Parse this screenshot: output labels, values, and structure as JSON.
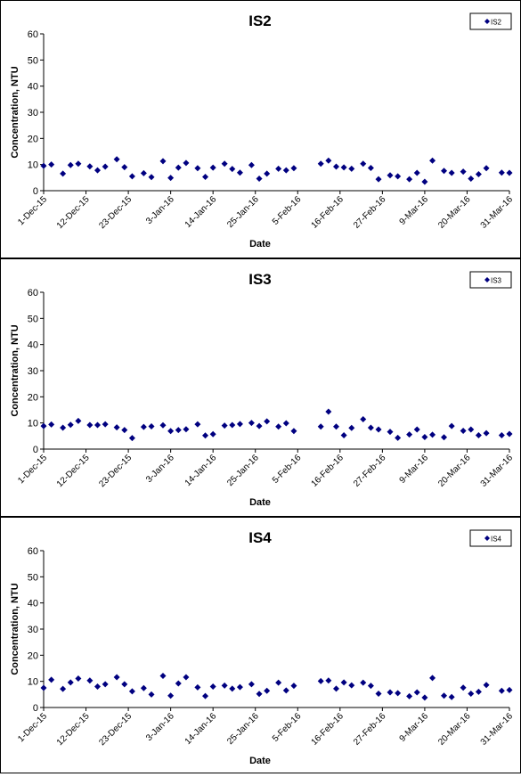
{
  "chart_data": [
    {
      "type": "scatter",
      "title": "IS2",
      "xlabel": "Date",
      "ylabel": "Concentration, NTU",
      "ylim": [
        0,
        60
      ],
      "yticks": [
        0,
        10,
        20,
        30,
        40,
        50,
        60
      ],
      "xticks": [
        "1-Dec-15",
        "12-Dec-15",
        "23-Dec-15",
        "3-Jan-16",
        "14-Jan-16",
        "25-Jan-16",
        "5-Feb-16",
        "16-Feb-16",
        "27-Feb-16",
        "9-Mar-16",
        "20-Mar-16",
        "31-Mar-16"
      ],
      "xlim": [
        "2015-12-01",
        "2016-03-31"
      ],
      "grid": false,
      "legend_position": "top-right",
      "marker_color": "#000080",
      "series": [
        {
          "name": "IS2",
          "points": [
            [
              "2015-12-01",
              9.5
            ],
            [
              "2015-12-03",
              10
            ],
            [
              "2015-12-06",
              6.5
            ],
            [
              "2015-12-08",
              9.8
            ],
            [
              "2015-12-10",
              10.3
            ],
            [
              "2015-12-13",
              9.3
            ],
            [
              "2015-12-15",
              7.8
            ],
            [
              "2015-12-17",
              9.2
            ],
            [
              "2015-12-20",
              12
            ],
            [
              "2015-12-22",
              9
            ],
            [
              "2015-12-24",
              5.5
            ],
            [
              "2015-12-27",
              6.7
            ],
            [
              "2015-12-29",
              5.2
            ],
            [
              "2016-01-01",
              11.3
            ],
            [
              "2016-01-03",
              4.9
            ],
            [
              "2016-01-05",
              8.8
            ],
            [
              "2016-01-07",
              10.6
            ],
            [
              "2016-01-10",
              8.6
            ],
            [
              "2016-01-12",
              5.3
            ],
            [
              "2016-01-14",
              8.8
            ],
            [
              "2016-01-17",
              10.3
            ],
            [
              "2016-01-19",
              8.3
            ],
            [
              "2016-01-21",
              6.9
            ],
            [
              "2016-01-24",
              9.8
            ],
            [
              "2016-01-26",
              4.6
            ],
            [
              "2016-01-28",
              6.5
            ],
            [
              "2016-01-31",
              8.4
            ],
            [
              "2016-02-02",
              7.8
            ],
            [
              "2016-02-04",
              8.6
            ],
            [
              "2016-02-11",
              10.3
            ],
            [
              "2016-02-13",
              11.5
            ],
            [
              "2016-02-15",
              9.2
            ],
            [
              "2016-02-17",
              8.9
            ],
            [
              "2016-02-19",
              8.4
            ],
            [
              "2016-02-22",
              10.3
            ],
            [
              "2016-02-24",
              8.7
            ],
            [
              "2016-02-26",
              4.4
            ],
            [
              "2016-02-29",
              5.9
            ],
            [
              "2016-03-02",
              5.5
            ],
            [
              "2016-03-05",
              4.4
            ],
            [
              "2016-03-07",
              6.8
            ],
            [
              "2016-03-09",
              3.4
            ],
            [
              "2016-03-11",
              11.5
            ],
            [
              "2016-03-14",
              7.6
            ],
            [
              "2016-03-16",
              6.8
            ],
            [
              "2016-03-19",
              7.3
            ],
            [
              "2016-03-21",
              4.6
            ],
            [
              "2016-03-23",
              6.3
            ],
            [
              "2016-03-25",
              8.6
            ],
            [
              "2016-03-29",
              6.9
            ],
            [
              "2016-03-31",
              6.8
            ]
          ]
        }
      ]
    },
    {
      "type": "scatter",
      "title": "IS3",
      "xlabel": "Date",
      "ylabel": "Concentration, NTU",
      "ylim": [
        0,
        60
      ],
      "yticks": [
        0,
        10,
        20,
        30,
        40,
        50,
        60
      ],
      "xticks": [
        "1-Dec-15",
        "12-Dec-15",
        "23-Dec-15",
        "3-Jan-16",
        "14-Jan-16",
        "25-Jan-16",
        "5-Feb-16",
        "16-Feb-16",
        "27-Feb-16",
        "9-Mar-16",
        "20-Mar-16",
        "31-Mar-16"
      ],
      "xlim": [
        "2015-12-01",
        "2016-03-31"
      ],
      "grid": false,
      "legend_position": "top-right",
      "marker_color": "#000080",
      "series": [
        {
          "name": "IS3",
          "points": [
            [
              "2015-12-01",
              8.8
            ],
            [
              "2015-12-03",
              9.4
            ],
            [
              "2015-12-06",
              8.2
            ],
            [
              "2015-12-08",
              9.3
            ],
            [
              "2015-12-10",
              10.8
            ],
            [
              "2015-12-13",
              9.2
            ],
            [
              "2015-12-15",
              9.2
            ],
            [
              "2015-12-17",
              9.5
            ],
            [
              "2015-12-20",
              8.3
            ],
            [
              "2015-12-22",
              7.3
            ],
            [
              "2015-12-24",
              4.2
            ],
            [
              "2015-12-27",
              8.5
            ],
            [
              "2015-12-29",
              8.7
            ],
            [
              "2016-01-01",
              9.1
            ],
            [
              "2016-01-03",
              6.9
            ],
            [
              "2016-01-05",
              7.3
            ],
            [
              "2016-01-07",
              7.6
            ],
            [
              "2016-01-10",
              9.5
            ],
            [
              "2016-01-12",
              5.2
            ],
            [
              "2016-01-14",
              5.7
            ],
            [
              "2016-01-17",
              9
            ],
            [
              "2016-01-19",
              9.2
            ],
            [
              "2016-01-21",
              9.6
            ],
            [
              "2016-01-24",
              10
            ],
            [
              "2016-01-26",
              8.8
            ],
            [
              "2016-01-28",
              10.6
            ],
            [
              "2016-01-31",
              8.6
            ],
            [
              "2016-02-02",
              9.9
            ],
            [
              "2016-02-04",
              6.9
            ],
            [
              "2016-02-11",
              8.6
            ],
            [
              "2016-02-13",
              14.3
            ],
            [
              "2016-02-15",
              8.6
            ],
            [
              "2016-02-17",
              5.3
            ],
            [
              "2016-02-19",
              8.1
            ],
            [
              "2016-02-22",
              11.4
            ],
            [
              "2016-02-24",
              8.2
            ],
            [
              "2016-02-26",
              7.5
            ],
            [
              "2016-02-29",
              6.6
            ],
            [
              "2016-03-02",
              4.3
            ],
            [
              "2016-03-05",
              5.6
            ],
            [
              "2016-03-07",
              7.5
            ],
            [
              "2016-03-09",
              4.6
            ],
            [
              "2016-03-11",
              5.5
            ],
            [
              "2016-03-14",
              4.5
            ],
            [
              "2016-03-16",
              8.8
            ],
            [
              "2016-03-19",
              7
            ],
            [
              "2016-03-21",
              7.5
            ],
            [
              "2016-03-23",
              5.3
            ],
            [
              "2016-03-25",
              6.1
            ],
            [
              "2016-03-29",
              5.3
            ],
            [
              "2016-03-31",
              5.8
            ]
          ]
        }
      ]
    },
    {
      "type": "scatter",
      "title": "IS4",
      "xlabel": "Date",
      "ylabel": "Concentration, NTU",
      "ylim": [
        0,
        60
      ],
      "yticks": [
        0,
        10,
        20,
        30,
        40,
        50,
        60
      ],
      "xticks": [
        "1-Dec-15",
        "12-Dec-15",
        "23-Dec-15",
        "3-Jan-16",
        "14-Jan-16",
        "25-Jan-16",
        "5-Feb-16",
        "16-Feb-16",
        "27-Feb-16",
        "9-Mar-16",
        "20-Mar-16",
        "31-Mar-16"
      ],
      "xlim": [
        "2015-12-01",
        "2016-03-31"
      ],
      "grid": false,
      "legend_position": "top-right",
      "marker_color": "#000080",
      "series": [
        {
          "name": "IS4",
          "points": [
            [
              "2015-12-01",
              7.5
            ],
            [
              "2015-12-03",
              10.6
            ],
            [
              "2015-12-06",
              7.1
            ],
            [
              "2015-12-08",
              9.6
            ],
            [
              "2015-12-10",
              11.1
            ],
            [
              "2015-12-13",
              10.3
            ],
            [
              "2015-12-15",
              8
            ],
            [
              "2015-12-17",
              8.9
            ],
            [
              "2015-12-20",
              11.6
            ],
            [
              "2015-12-22",
              8.9
            ],
            [
              "2015-12-24",
              6.2
            ],
            [
              "2015-12-27",
              7.4
            ],
            [
              "2015-12-29",
              5
            ],
            [
              "2016-01-01",
              12.1
            ],
            [
              "2016-01-03",
              4.5
            ],
            [
              "2016-01-05",
              9.2
            ],
            [
              "2016-01-07",
              11.6
            ],
            [
              "2016-01-10",
              7.7
            ],
            [
              "2016-01-12",
              4.4
            ],
            [
              "2016-01-14",
              8
            ],
            [
              "2016-01-17",
              8.4
            ],
            [
              "2016-01-19",
              7.2
            ],
            [
              "2016-01-21",
              7.8
            ],
            [
              "2016-01-24",
              8.9
            ],
            [
              "2016-01-26",
              5.2
            ],
            [
              "2016-01-28",
              6.4
            ],
            [
              "2016-01-31",
              9.5
            ],
            [
              "2016-02-02",
              6.5
            ],
            [
              "2016-02-04",
              8.3
            ],
            [
              "2016-02-11",
              10.1
            ],
            [
              "2016-02-13",
              10.3
            ],
            [
              "2016-02-15",
              7.2
            ],
            [
              "2016-02-17",
              9.6
            ],
            [
              "2016-02-19",
              8.5
            ],
            [
              "2016-02-22",
              9.5
            ],
            [
              "2016-02-24",
              8.3
            ],
            [
              "2016-02-26",
              5.3
            ],
            [
              "2016-02-29",
              5.8
            ],
            [
              "2016-03-02",
              5.5
            ],
            [
              "2016-03-05",
              4.3
            ],
            [
              "2016-03-07",
              5.8
            ],
            [
              "2016-03-09",
              3.8
            ],
            [
              "2016-03-11",
              11.3
            ],
            [
              "2016-03-14",
              4.5
            ],
            [
              "2016-03-16",
              4
            ],
            [
              "2016-03-19",
              7.6
            ],
            [
              "2016-03-21",
              5.3
            ],
            [
              "2016-03-23",
              6
            ],
            [
              "2016-03-25",
              8.6
            ],
            [
              "2016-03-29",
              6.4
            ],
            [
              "2016-03-31",
              6.7
            ]
          ]
        }
      ]
    }
  ]
}
